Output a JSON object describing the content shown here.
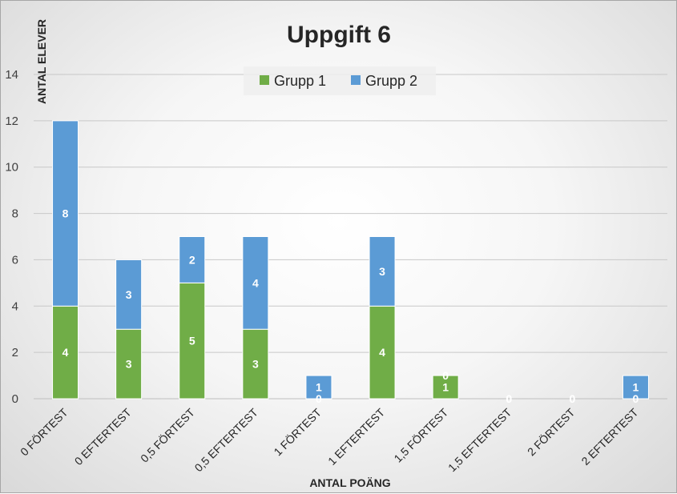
{
  "chart_data": {
    "type": "bar",
    "stacked": true,
    "title": "Uppgift 6",
    "xlabel": "ANTAL POÄNG",
    "ylabel": "ANTAL ELEVER",
    "ylim": [
      0,
      14
    ],
    "yticks": [
      0,
      2,
      4,
      6,
      8,
      10,
      12,
      14
    ],
    "grid": true,
    "legend_position": "top-center",
    "categories": [
      "0 FÖRTEST",
      "0 EFTERTEST",
      "0,5 FÖRTEST",
      "0,5 EFTERTEST",
      "1 FÖRTEST",
      "1 EFTERTEST",
      "1,5 FÖRTEST",
      "1,5 EFTERTEST",
      "2 FÖRTEST",
      "2 EFTERTEST"
    ],
    "series": [
      {
        "name": "Grupp 1",
        "color": "#70ad47",
        "values": [
          4,
          3,
          5,
          3,
          0,
          4,
          1,
          0,
          0,
          0
        ]
      },
      {
        "name": "Grupp 2",
        "color": "#5b9bd5",
        "values": [
          8,
          3,
          2,
          4,
          1,
          3,
          0,
          0,
          0,
          1
        ]
      }
    ]
  }
}
